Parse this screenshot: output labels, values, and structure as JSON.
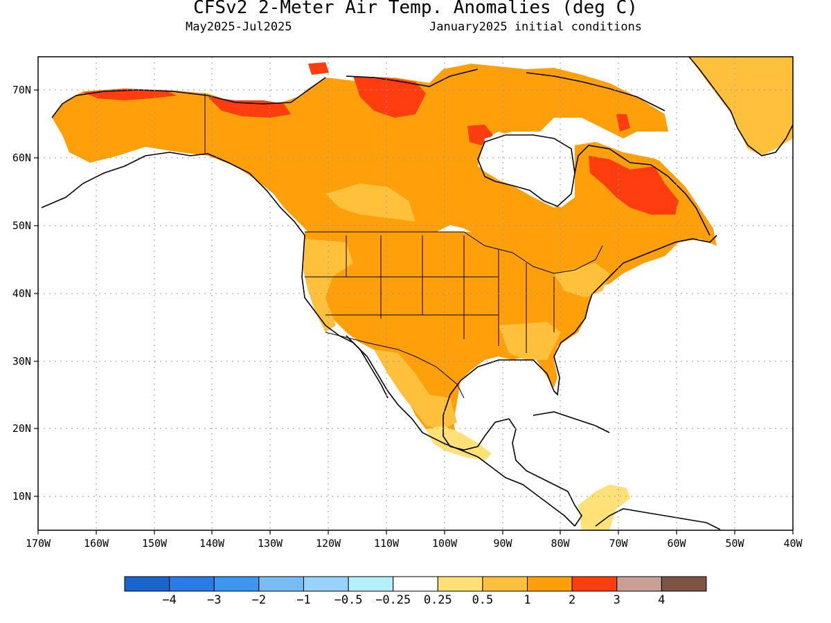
{
  "title": "CFSv2 2-Meter Air Temp. Anomalies (deg C)",
  "subtitle_left": "May2025-Jul2025",
  "subtitle_right": "January2025 initial conditions",
  "axes": {
    "lat_labels": [
      "10N",
      "20N",
      "30N",
      "40N",
      "50N",
      "60N",
      "70N"
    ],
    "lon_labels": [
      "170W",
      "160W",
      "150W",
      "140W",
      "130W",
      "120W",
      "110W",
      "100W",
      "90W",
      "80W",
      "70W",
      "60W",
      "50W",
      "40W"
    ]
  },
  "colorbar": {
    "colors": [
      "#1965cd",
      "#2a7ae8",
      "#3d96f0",
      "#78bcf5",
      "#96d2fa",
      "#b4f0fa",
      "#ffffff",
      "#ffe178",
      "#ffc03c",
      "#ffa00a",
      "#ff3d0f",
      "#c8a096",
      "#7d5546"
    ],
    "labels": [
      "−4",
      "−3",
      "−2",
      "−1",
      "−0.5",
      "−0.25",
      "0.25",
      "0.5",
      "1",
      "2",
      "3",
      "4"
    ]
  },
  "anomaly_categories": {
    "above_1_to_2": "#ffa00a",
    "above_0.5_to_1": "#ffc03c",
    "above_0.25_to_0.5": "#ffe178",
    "above_2_to_3": "#ff3d0f"
  }
}
